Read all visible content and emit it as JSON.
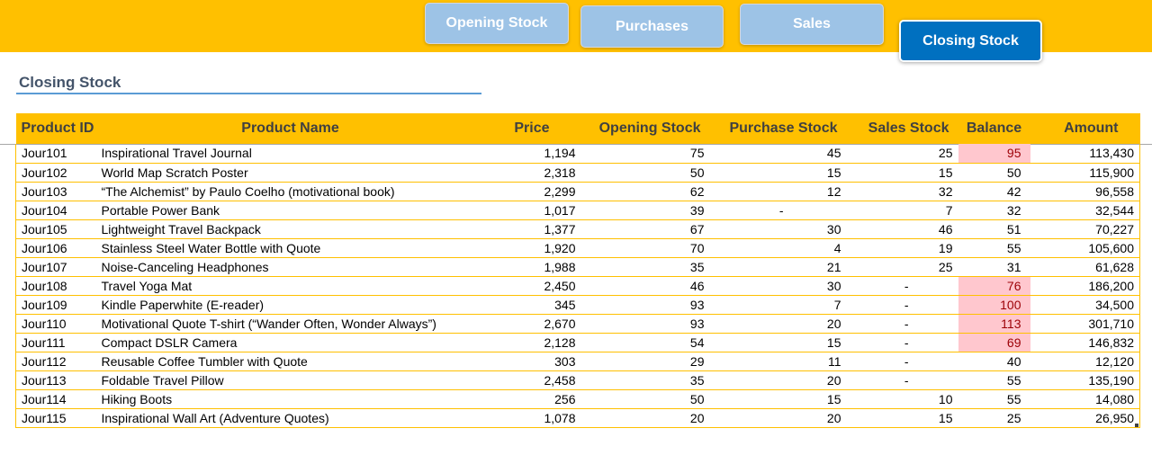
{
  "nav": {
    "opening_stock": "Opening Stock",
    "purchases": "Purchases",
    "sales": "Sales",
    "closing_stock": "Closing Stock"
  },
  "sheet_title": "Closing Stock",
  "table": {
    "headers": [
      "Product ID",
      "Product Name",
      "Price",
      "Opening Stock",
      "Purchase Stock",
      "Sales Stock",
      "Balance",
      "Amount"
    ],
    "rows": [
      {
        "id": "Jour101",
        "name": "Inspirational Travel Journal",
        "price": "1,194",
        "opening": "75",
        "purchase": "45",
        "sales": "25",
        "balance": "95",
        "amount": "113,430",
        "hl": true
      },
      {
        "id": "Jour102",
        "name": "World Map Scratch Poster",
        "price": "2,318",
        "opening": "50",
        "purchase": "15",
        "sales": "15",
        "balance": "50",
        "amount": "115,900",
        "hl": false
      },
      {
        "id": "Jour103",
        "name": "“The Alchemist” by Paulo Coelho (motivational book)",
        "price": "2,299",
        "opening": "62",
        "purchase": "12",
        "sales": "32",
        "balance": "42",
        "amount": "96,558",
        "hl": false
      },
      {
        "id": "Jour104",
        "name": "Portable Power Bank",
        "price": "1,017",
        "opening": "39",
        "purchase": "-",
        "sales": "7",
        "balance": "32",
        "amount": "32,544",
        "hl": false
      },
      {
        "id": "Jour105",
        "name": "Lightweight Travel Backpack",
        "price": "1,377",
        "opening": "67",
        "purchase": "30",
        "sales": "46",
        "balance": "51",
        "amount": "70,227",
        "hl": false
      },
      {
        "id": "Jour106",
        "name": "Stainless Steel Water Bottle with Quote",
        "price": "1,920",
        "opening": "70",
        "purchase": "4",
        "sales": "19",
        "balance": "55",
        "amount": "105,600",
        "hl": false
      },
      {
        "id": "Jour107",
        "name": "Noise-Canceling Headphones",
        "price": "1,988",
        "opening": "35",
        "purchase": "21",
        "sales": "25",
        "balance": "31",
        "amount": "61,628",
        "hl": false
      },
      {
        "id": "Jour108",
        "name": "Travel Yoga Mat",
        "price": "2,450",
        "opening": "46",
        "purchase": "30",
        "sales": "-",
        "balance": "76",
        "amount": "186,200",
        "hl": true
      },
      {
        "id": "Jour109",
        "name": "Kindle Paperwhite (E-reader)",
        "price": "345",
        "opening": "93",
        "purchase": "7",
        "sales": "-",
        "balance": "100",
        "amount": "34,500",
        "hl": true
      },
      {
        "id": "Jour110",
        "name": "Motivational Quote T-shirt (“Wander Often, Wonder Always”)",
        "price": "2,670",
        "opening": "93",
        "purchase": "20",
        "sales": "-",
        "balance": "113",
        "amount": "301,710",
        "hl": true
      },
      {
        "id": "Jour111",
        "name": "Compact DSLR Camera",
        "price": "2,128",
        "opening": "54",
        "purchase": "15",
        "sales": "-",
        "balance": "69",
        "amount": "146,832",
        "hl": true
      },
      {
        "id": "Jour112",
        "name": "Reusable Coffee Tumbler with Quote",
        "price": "303",
        "opening": "29",
        "purchase": "11",
        "sales": "-",
        "balance": "40",
        "amount": "12,120",
        "hl": false
      },
      {
        "id": "Jour113",
        "name": "Foldable Travel Pillow",
        "price": "2,458",
        "opening": "35",
        "purchase": "20",
        "sales": "-",
        "balance": "55",
        "amount": "135,190",
        "hl": false
      },
      {
        "id": "Jour114",
        "name": "Hiking Boots",
        "price": "256",
        "opening": "50",
        "purchase": "15",
        "sales": "10",
        "balance": "55",
        "amount": "14,080",
        "hl": false
      },
      {
        "id": "Jour115",
        "name": "Inspirational Wall Art (Adventure Quotes)",
        "price": "1,078",
        "opening": "20",
        "purchase": "20",
        "sales": "15",
        "balance": "25",
        "amount": "26,950",
        "hl": false
      }
    ]
  },
  "colors": {
    "accent": "#ffc000",
    "nav_inactive": "#9dc3e6",
    "nav_active": "#0070c0",
    "highlight_fill": "#ffc7ce",
    "highlight_text": "#9c0006"
  }
}
